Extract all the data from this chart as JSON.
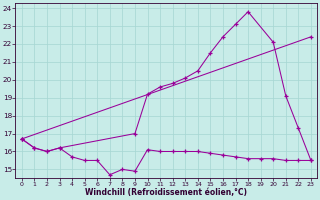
{
  "xlabel": "Windchill (Refroidissement éolien,°C)",
  "bg_color": "#c8ece8",
  "grid_color": "#a8d8d4",
  "line_color": "#990099",
  "xlim_min": -0.5,
  "xlim_max": 23.5,
  "ylim_min": 14.5,
  "ylim_max": 24.3,
  "xticks": [
    0,
    1,
    2,
    3,
    4,
    5,
    6,
    7,
    8,
    9,
    10,
    11,
    12,
    13,
    14,
    15,
    16,
    17,
    18,
    19,
    20,
    21,
    22,
    23
  ],
  "yticks": [
    15,
    16,
    17,
    18,
    19,
    20,
    21,
    22,
    23,
    24
  ],
  "series1_x": [
    0,
    1,
    2,
    3,
    4,
    5,
    6,
    7,
    8,
    9,
    10,
    11,
    12,
    13,
    14,
    15,
    16,
    17,
    18,
    19,
    20,
    21,
    22,
    23
  ],
  "series1_y": [
    16.7,
    16.2,
    16.0,
    16.2,
    15.7,
    15.5,
    15.5,
    14.7,
    15.0,
    14.9,
    16.1,
    16.0,
    16.0,
    16.0,
    16.0,
    15.9,
    15.8,
    15.7,
    15.6,
    15.6,
    15.6,
    15.5,
    15.5,
    15.5
  ],
  "series2_x": [
    0,
    1,
    2,
    3,
    9,
    10,
    11,
    12,
    13,
    14,
    15,
    16,
    17,
    18,
    20,
    21,
    22,
    23
  ],
  "series2_y": [
    16.7,
    16.2,
    16.0,
    16.2,
    17.0,
    19.2,
    19.6,
    19.8,
    20.1,
    20.5,
    21.5,
    22.4,
    23.1,
    23.8,
    22.1,
    19.1,
    17.3,
    15.5
  ],
  "series3_x": [
    0,
    23
  ],
  "series3_y": [
    16.7,
    22.4
  ]
}
